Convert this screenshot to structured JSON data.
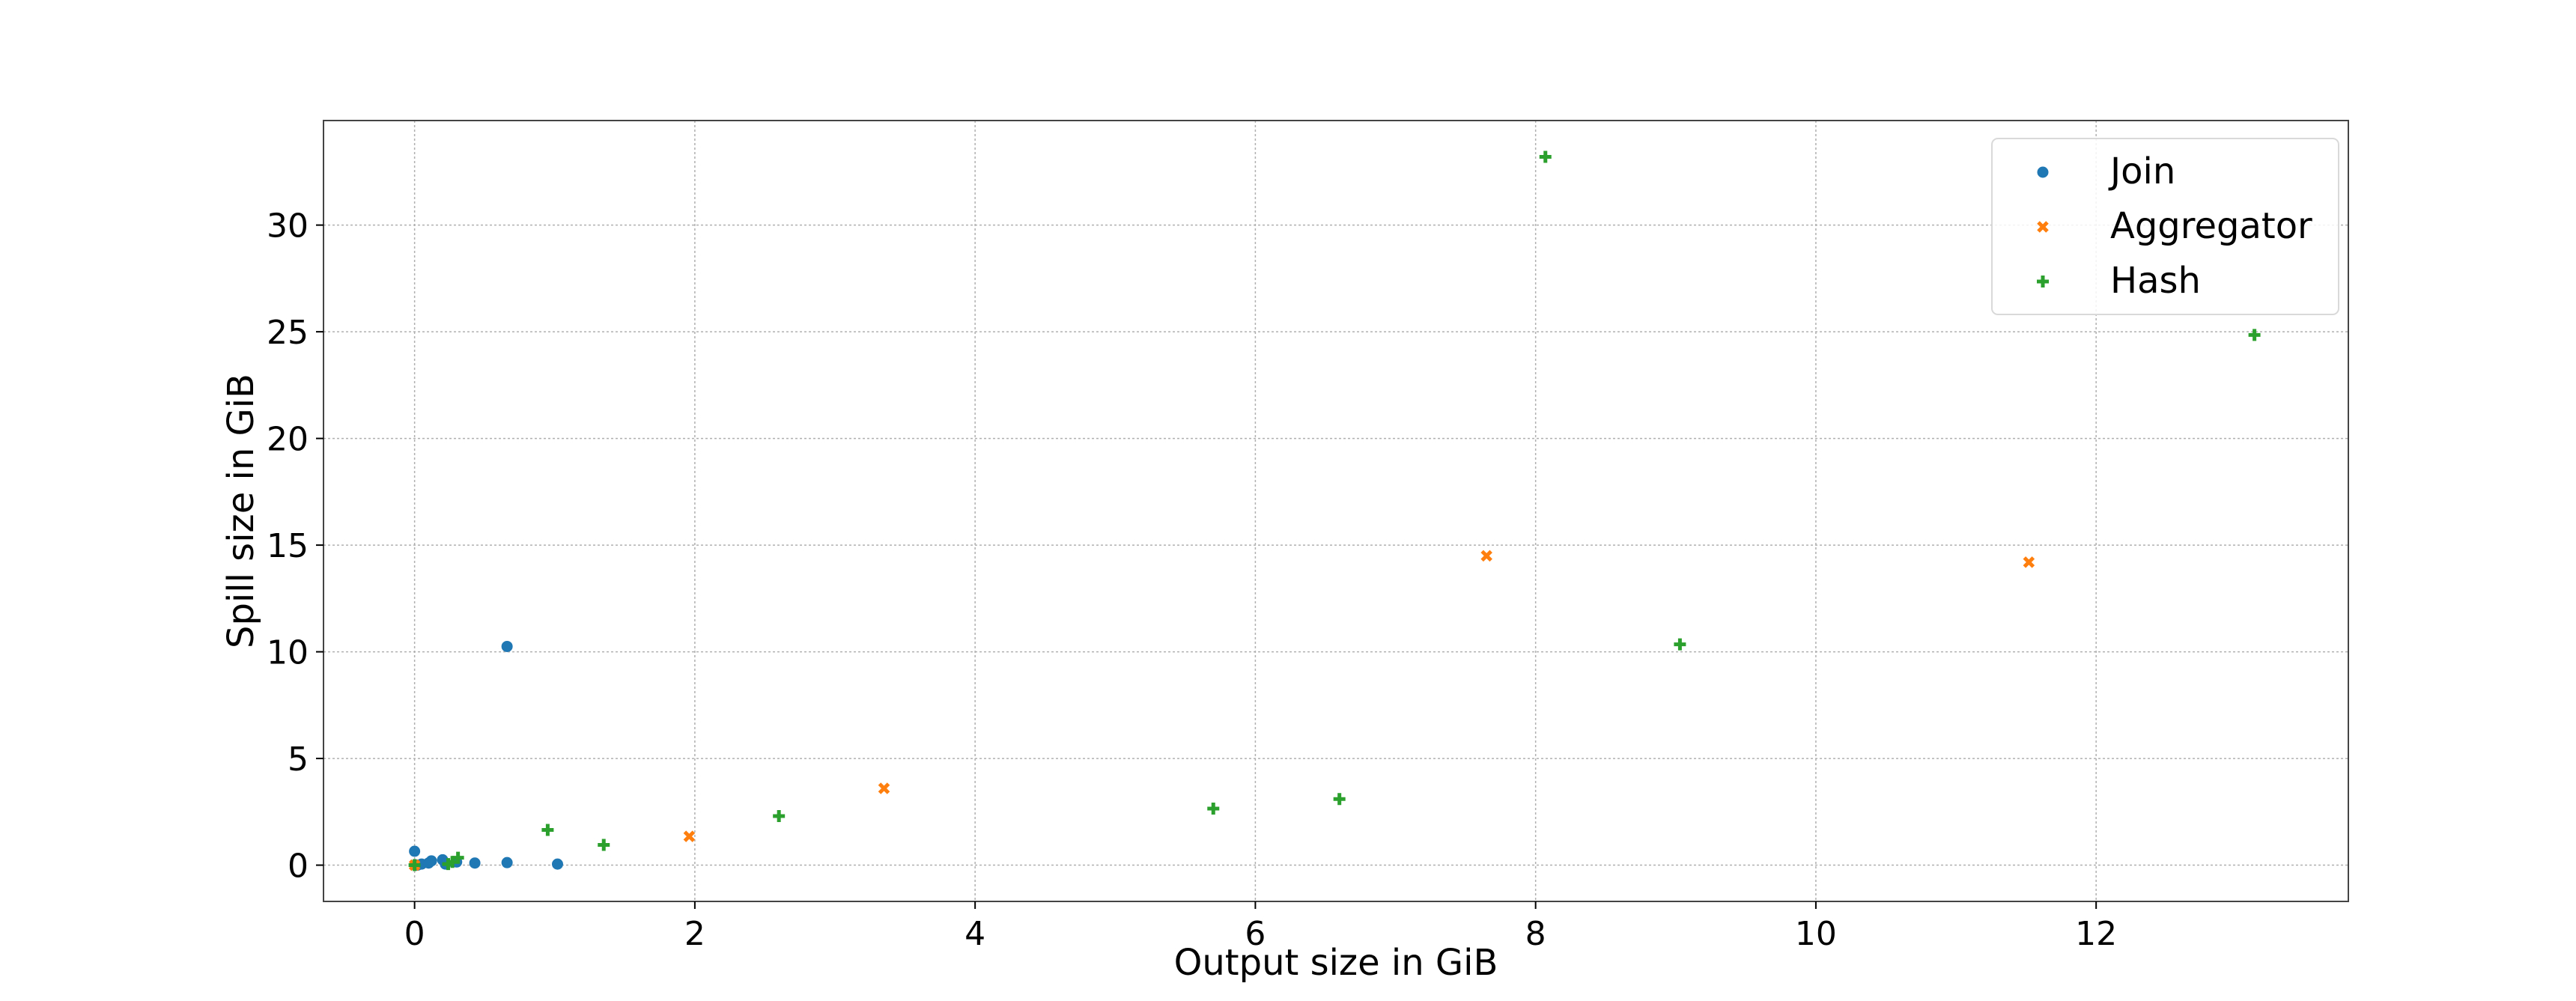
{
  "chart_data": {
    "type": "scatter",
    "title": "",
    "xlabel": "Output size in GiB",
    "ylabel": "Spill size in GiB",
    "xlim": [
      -0.65,
      13.8
    ],
    "ylim": [
      -1.7,
      34.9
    ],
    "xticks": [
      0,
      2,
      4,
      6,
      8,
      10,
      12
    ],
    "yticks": [
      0,
      5,
      10,
      15,
      20,
      25,
      30
    ],
    "grid": true,
    "legend_position": "top-right",
    "series": [
      {
        "name": "Join",
        "marker": "circle",
        "color": "#1f77b4",
        "points": [
          {
            "x": 0.0,
            "y": 0.65
          },
          {
            "x": 0.02,
            "y": 0.0
          },
          {
            "x": 0.05,
            "y": 0.05
          },
          {
            "x": 0.1,
            "y": 0.1
          },
          {
            "x": 0.12,
            "y": 0.2
          },
          {
            "x": 0.2,
            "y": 0.25
          },
          {
            "x": 0.22,
            "y": 0.05
          },
          {
            "x": 0.3,
            "y": 0.15
          },
          {
            "x": 0.43,
            "y": 0.1
          },
          {
            "x": 0.66,
            "y": 0.12
          },
          {
            "x": 0.66,
            "y": 10.25
          },
          {
            "x": 1.02,
            "y": 0.05
          }
        ]
      },
      {
        "name": "Aggregator",
        "marker": "x",
        "color": "#ff7f0e",
        "points": [
          {
            "x": 0.0,
            "y": 0.0
          },
          {
            "x": 1.96,
            "y": 1.35
          },
          {
            "x": 3.35,
            "y": 3.6
          },
          {
            "x": 7.65,
            "y": 14.5
          },
          {
            "x": 11.52,
            "y": 14.2
          }
        ]
      },
      {
        "name": "Hash",
        "marker": "plus",
        "color": "#2ca02c",
        "points": [
          {
            "x": 0.0,
            "y": 0.0
          },
          {
            "x": 0.24,
            "y": 0.05
          },
          {
            "x": 0.27,
            "y": 0.15
          },
          {
            "x": 0.31,
            "y": 0.35
          },
          {
            "x": 0.95,
            "y": 1.65
          },
          {
            "x": 1.35,
            "y": 0.95
          },
          {
            "x": 2.6,
            "y": 2.3
          },
          {
            "x": 5.7,
            "y": 2.65
          },
          {
            "x": 6.6,
            "y": 3.1
          },
          {
            "x": 8.07,
            "y": 33.2
          },
          {
            "x": 9.03,
            "y": 10.35
          },
          {
            "x": 13.13,
            "y": 24.85
          }
        ]
      }
    ]
  }
}
